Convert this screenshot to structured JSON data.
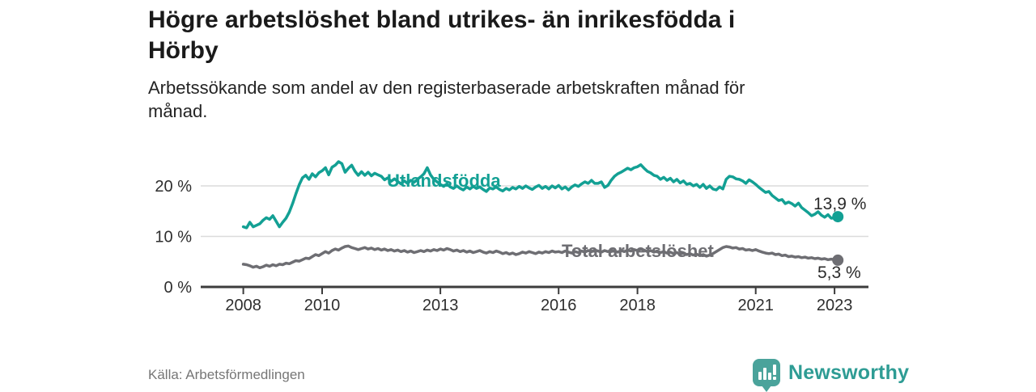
{
  "header": {
    "title_lines": [
      "Högre arbetslöshet bland utrikes- än inrikesfödda i",
      "Hörby"
    ],
    "subtitle_lines": [
      "Arbetssökande som andel av den registerbaserade arbetskraften månad för",
      "månad."
    ]
  },
  "footer": {
    "source": "Källa: Arbetsförmedlingen",
    "brand": "Newsworthy"
  },
  "colors": {
    "accent_teal": "#13a094",
    "gray_line": "#6e6e73",
    "axis": "#3c3c3c",
    "grid": "#dbdbdb",
    "brand_teal": "#2e9c94",
    "brand_icon_bg": "#4aa39b",
    "value_label": "#2b2b2b"
  },
  "chart_data": {
    "type": "line",
    "title": "Högre arbetslöshet bland utrikes- än inrikesfödda i Hörby",
    "ylabel": "",
    "xlabel": "",
    "x_unit": "monthly",
    "x_start_year": 2008,
    "x_end_label": "feb 2023",
    "ylim": [
      0,
      26
    ],
    "grid": "horizontal",
    "grid_values": [
      10,
      20
    ],
    "y_tick_values": [
      0,
      10,
      20
    ],
    "y_tick_labels": [
      "0 %",
      "10 %",
      "20 %"
    ],
    "x_tick_years": [
      2008,
      2010,
      2013,
      2016,
      2018,
      2021,
      2023
    ],
    "x_tick_labels": [
      "2008",
      "2010",
      "2013",
      "2016",
      "2018",
      "2021",
      "2023"
    ],
    "legend_position": "inline",
    "series": [
      {
        "name": "Utlandsfödda",
        "color": "#13a094",
        "end_label": "13,9 %",
        "end_value": 13.9,
        "values": [
          11.9,
          11.7,
          12.8,
          11.9,
          12.2,
          12.5,
          13.2,
          13.7,
          13.4,
          14.1,
          13.0,
          11.9,
          12.8,
          13.6,
          14.8,
          16.5,
          18.4,
          20.2,
          21.6,
          22.1,
          21.3,
          22.4,
          21.8,
          22.6,
          23.0,
          23.6,
          22.2,
          23.7,
          24.1,
          24.8,
          24.4,
          22.7,
          23.5,
          24.1,
          22.9,
          22.1,
          22.8,
          22.1,
          22.7,
          22.0,
          22.5,
          22.2,
          21.9,
          21.2,
          21.6,
          20.9,
          21.4,
          20.9,
          20.4,
          21.0,
          20.5,
          21.1,
          20.7,
          21.3,
          21.8,
          22.4,
          23.6,
          22.2,
          21.3,
          20.8,
          20.3,
          19.9,
          20.4,
          19.8,
          19.5,
          20.0,
          19.5,
          19.2,
          19.8,
          19.4,
          19.9,
          19.5,
          19.8,
          19.3,
          18.9,
          19.6,
          19.4,
          19.8,
          19.3,
          19.0,
          19.5,
          19.2,
          19.7,
          19.4,
          19.9,
          19.5,
          20.0,
          19.6,
          19.3,
          19.8,
          20.1,
          19.5,
          19.9,
          19.4,
          20.0,
          19.6,
          20.1,
          19.4,
          19.8,
          19.2,
          19.8,
          20.2,
          19.9,
          20.4,
          20.8,
          20.5,
          21.1,
          20.5,
          20.5,
          20.8,
          19.7,
          20.1,
          21.1,
          21.9,
          22.4,
          22.7,
          23.1,
          23.5,
          23.2,
          23.6,
          23.8,
          24.2,
          23.5,
          22.9,
          22.6,
          22.1,
          21.9,
          21.3,
          21.7,
          21.1,
          21.5,
          20.8,
          21.3,
          20.6,
          21.0,
          20.3,
          20.5,
          20.0,
          20.3,
          19.7,
          20.3,
          19.5,
          20.0,
          19.4,
          19.2,
          19.8,
          19.4,
          21.3,
          21.9,
          21.8,
          21.4,
          21.3,
          21.0,
          20.5,
          21.2,
          20.8,
          20.3,
          19.7,
          19.2,
          18.7,
          18.9,
          18.1,
          17.6,
          17.1,
          17.3,
          16.5,
          16.8,
          16.5,
          16.0,
          16.6,
          15.7,
          15.2,
          14.7,
          14.1,
          14.4,
          14.9,
          14.2,
          13.8,
          14.3,
          13.6,
          13.7,
          13.9
        ]
      },
      {
        "name": "Total arbetslöshet",
        "color": "#6e6e73",
        "end_label": "5,3 %",
        "end_value": 5.3,
        "values": [
          4.5,
          4.4,
          4.2,
          3.9,
          4.1,
          3.8,
          4.0,
          4.3,
          4.1,
          4.4,
          4.2,
          4.5,
          4.4,
          4.7,
          4.6,
          4.9,
          5.2,
          5.1,
          5.4,
          5.7,
          5.6,
          6.0,
          6.4,
          6.2,
          6.6,
          7.0,
          6.7,
          7.2,
          7.5,
          7.3,
          7.7,
          8.0,
          8.1,
          7.8,
          7.6,
          7.4,
          7.6,
          7.8,
          7.5,
          7.7,
          7.4,
          7.6,
          7.3,
          7.5,
          7.2,
          7.4,
          7.1,
          7.3,
          7.0,
          7.2,
          6.9,
          7.1,
          6.8,
          7.0,
          7.2,
          7.0,
          7.3,
          7.1,
          7.4,
          7.2,
          7.5,
          7.3,
          7.6,
          7.4,
          7.1,
          7.3,
          7.0,
          7.2,
          6.9,
          7.1,
          6.8,
          7.0,
          7.2,
          6.9,
          6.7,
          7.0,
          6.8,
          7.1,
          6.9,
          6.6,
          6.8,
          6.5,
          6.7,
          6.4,
          6.6,
          6.9,
          6.7,
          7.0,
          6.8,
          6.6,
          6.9,
          6.7,
          7.0,
          6.8,
          7.1,
          6.9,
          7.0,
          6.8,
          7.1,
          6.9,
          6.7,
          7.0,
          6.8,
          7.1,
          6.9,
          7.2,
          7.0,
          7.3,
          7.1,
          6.9,
          7.2,
          7.0,
          7.3,
          7.1,
          6.9,
          7.2,
          7.0,
          7.3,
          7.1,
          7.4,
          7.2,
          7.5,
          7.3,
          7.0,
          7.2,
          6.9,
          7.1,
          6.8,
          7.0,
          6.7,
          6.9,
          6.6,
          6.8,
          6.5,
          6.7,
          6.4,
          6.6,
          6.3,
          6.5,
          6.2,
          6.4,
          6.1,
          6.3,
          6.6,
          7.0,
          7.4,
          7.8,
          8.0,
          7.9,
          7.7,
          7.8,
          7.5,
          7.6,
          7.3,
          7.4,
          7.2,
          7.4,
          7.1,
          6.9,
          6.7,
          6.6,
          6.7,
          6.4,
          6.5,
          6.2,
          6.3,
          6.0,
          6.1,
          5.9,
          6.0,
          5.8,
          5.9,
          5.7,
          5.8,
          5.6,
          5.7,
          5.5,
          5.6,
          5.4,
          5.5,
          5.4,
          5.3
        ]
      }
    ]
  }
}
